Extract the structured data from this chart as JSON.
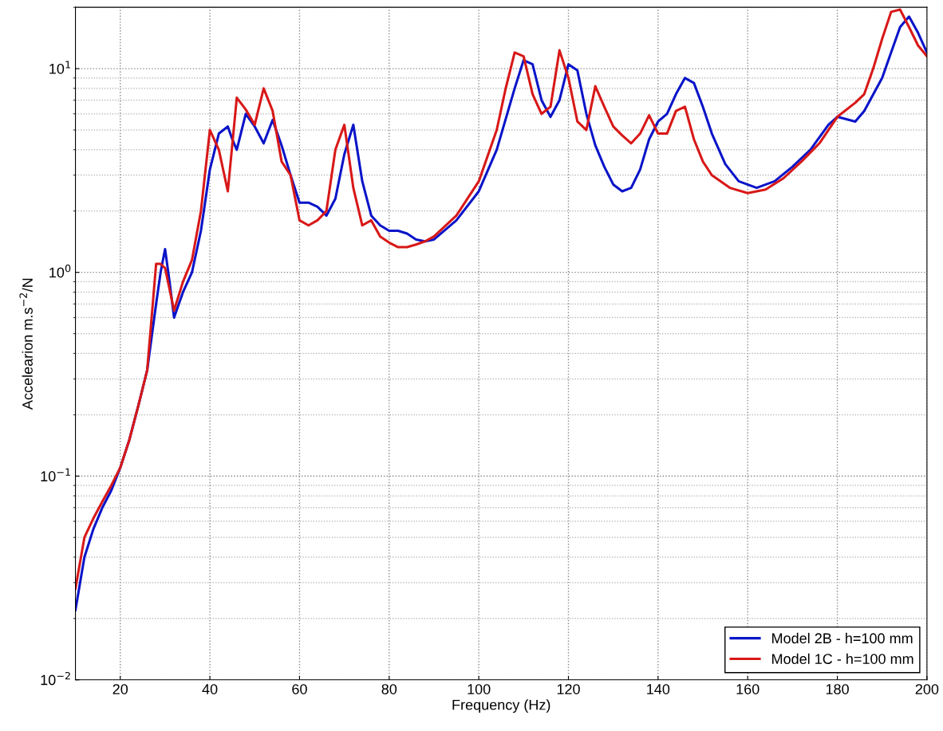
{
  "chart_data": {
    "type": "line",
    "xlabel": "Frequency (Hz)",
    "ylabel": "Accelearion m.s$^{−2}$/N",
    "log": "y",
    "grid": true,
    "legend": "bottom right",
    "line_style": "solid",
    "marker": "none",
    "xlim": [
      10,
      200
    ],
    "xticks": [
      20,
      40,
      60,
      80,
      100,
      120,
      140,
      160,
      180,
      200
    ],
    "ylim": [
      0.01,
      20
    ],
    "yticks": [
      {
        "value": 0.01,
        "label": "10$^{−2}$"
      },
      {
        "value": 0.1,
        "label": "10$^{−1}$"
      },
      {
        "value": 1,
        "label": "10$^{0}$"
      },
      {
        "value": 10,
        "label": "10$^{1}$"
      }
    ],
    "series": [
      {
        "name": "Model 2B - h=100 mm",
        "color": "#0a14c8",
        "x": [
          10,
          12,
          14,
          16,
          18,
          20,
          22,
          24,
          26,
          28,
          29,
          30,
          31,
          32,
          34,
          36,
          38,
          40,
          42,
          44,
          45,
          46,
          48,
          50,
          52,
          54,
          56,
          58,
          60,
          62,
          64,
          66,
          68,
          70,
          72,
          74,
          76,
          78,
          80,
          82,
          84,
          86,
          88,
          90,
          95,
          100,
          104,
          108,
          110,
          112,
          114,
          116,
          118,
          120,
          122,
          124,
          126,
          128,
          130,
          132,
          134,
          136,
          138,
          140,
          142,
          144,
          146,
          148,
          150,
          152,
          155,
          158,
          162,
          166,
          170,
          174,
          178,
          180,
          184,
          186,
          190,
          192,
          194,
          196,
          198,
          200
        ],
        "values": [
          0.022,
          0.04,
          0.055,
          0.07,
          0.085,
          0.11,
          0.15,
          0.22,
          0.33,
          0.7,
          1.0,
          1.3,
          0.9,
          0.6,
          0.8,
          1.0,
          1.6,
          3.2,
          4.8,
          5.2,
          4.5,
          4.0,
          6.0,
          5.2,
          4.3,
          5.6,
          4.2,
          3.0,
          2.2,
          2.2,
          2.1,
          1.9,
          2.3,
          3.8,
          5.3,
          2.8,
          1.9,
          1.7,
          1.6,
          1.6,
          1.55,
          1.45,
          1.42,
          1.45,
          1.8,
          2.5,
          4.0,
          8,
          11,
          10.5,
          7,
          5.8,
          7,
          10.5,
          9.8,
          6,
          4.2,
          3.3,
          2.7,
          2.5,
          2.6,
          3.2,
          4.5,
          5.5,
          6,
          7.5,
          9.0,
          8.5,
          6.5,
          4.8,
          3.4,
          2.8,
          2.6,
          2.8,
          3.3,
          4.0,
          5.3,
          5.8,
          5.5,
          6.2,
          9,
          12,
          16,
          18,
          15,
          12
        ]
      },
      {
        "name": "Model 1C - h=100 mm",
        "color": "#d81818",
        "x": [
          10,
          12,
          14,
          16,
          18,
          20,
          22,
          24,
          26,
          27,
          28,
          29,
          30,
          32,
          34,
          36,
          38,
          40,
          42,
          44,
          46,
          48,
          50,
          52,
          54,
          56,
          58,
          60,
          62,
          64,
          66,
          68,
          70,
          72,
          74,
          76,
          78,
          80,
          82,
          84,
          86,
          88,
          90,
          95,
          100,
          104,
          106,
          108,
          110,
          112,
          114,
          116,
          118,
          120,
          122,
          124,
          126,
          128,
          130,
          132,
          134,
          136,
          138,
          140,
          142,
          144,
          146,
          148,
          150,
          152,
          156,
          160,
          164,
          168,
          172,
          176,
          180,
          184,
          186,
          188,
          190,
          192,
          194,
          196,
          198,
          200
        ],
        "values": [
          0.028,
          0.05,
          0.062,
          0.075,
          0.09,
          0.11,
          0.15,
          0.22,
          0.33,
          0.6,
          1.1,
          1.1,
          1.05,
          0.65,
          0.9,
          1.15,
          2.0,
          5.0,
          4.0,
          2.5,
          7.2,
          6.3,
          5.3,
          8.0,
          6.2,
          3.5,
          3.0,
          1.8,
          1.7,
          1.8,
          2.0,
          4.0,
          5.3,
          2.6,
          1.7,
          1.8,
          1.5,
          1.4,
          1.33,
          1.33,
          1.37,
          1.42,
          1.5,
          1.9,
          2.8,
          5,
          8,
          12,
          11.5,
          7.5,
          6,
          6.5,
          12.3,
          9,
          5.5,
          5,
          8.2,
          6.5,
          5.2,
          4.7,
          4.3,
          4.8,
          5.9,
          4.8,
          4.8,
          6.2,
          6.5,
          4.5,
          3.5,
          3.0,
          2.6,
          2.45,
          2.55,
          2.9,
          3.5,
          4.3,
          5.8,
          6.8,
          7.5,
          10,
          14,
          19,
          19.5,
          16,
          13,
          11.5
        ]
      }
    ]
  }
}
